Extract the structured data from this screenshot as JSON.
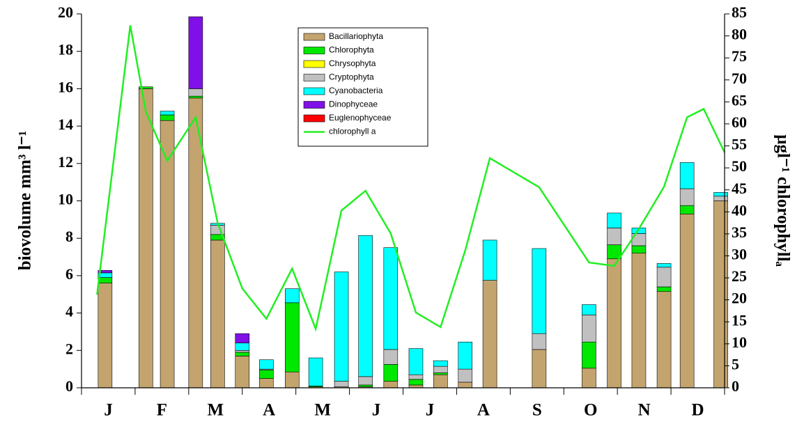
{
  "chart_data": {
    "type": "stacked-bar-line",
    "ylabel": "biovolume mm³ l⁻¹",
    "y2label": "µgl⁻¹ chlorophyllₐ",
    "xlim": [
      0,
      12
    ],
    "xtick_marks": [
      0,
      1,
      2,
      3,
      4,
      5,
      6,
      7,
      8,
      9,
      10,
      11,
      12
    ],
    "xticks": [
      {
        "value": 0.5,
        "label": "J"
      },
      {
        "value": 1.5,
        "label": "F"
      },
      {
        "value": 2.5,
        "label": "M"
      },
      {
        "value": 3.5,
        "label": "A"
      },
      {
        "value": 4.5,
        "label": "M"
      },
      {
        "value": 5.5,
        "label": "J"
      },
      {
        "value": 6.5,
        "label": "J"
      },
      {
        "value": 7.5,
        "label": "A"
      },
      {
        "value": 8.5,
        "label": "S"
      },
      {
        "value": 9.5,
        "label": "O"
      },
      {
        "value": 10.5,
        "label": "N"
      },
      {
        "value": 11.5,
        "label": "D"
      }
    ],
    "ylim": [
      0,
      20
    ],
    "yticks": [
      0,
      2,
      4,
      6,
      8,
      10,
      12,
      14,
      16,
      18,
      20
    ],
    "y2lim": [
      0,
      85
    ],
    "y2ticks": [
      0,
      5,
      10,
      15,
      20,
      25,
      30,
      35,
      40,
      45,
      50,
      55,
      60,
      65,
      70,
      75,
      80,
      85
    ],
    "x": [
      0.44,
      1.2,
      1.6,
      2.13,
      2.54,
      3.0,
      3.45,
      3.93,
      4.37,
      4.85,
      5.3,
      5.77,
      6.24,
      6.7,
      7.16,
      7.62,
      8.54,
      9.47,
      9.94,
      10.4,
      10.87,
      11.3,
      11.93
    ],
    "series": [
      {
        "name": "Bacillariophyta",
        "color": "#c4a46e",
        "values": [
          5.6,
          16.0,
          14.3,
          15.5,
          7.9,
          1.7,
          0.5,
          0.85,
          0.05,
          0.05,
          0.05,
          0.35,
          0.15,
          0.7,
          0.3,
          5.75,
          2.05,
          1.05,
          6.9,
          7.2,
          5.15,
          9.3,
          10.0
        ]
      },
      {
        "name": "Chlorophyta",
        "color": "#00e800",
        "values": [
          0.3,
          0.1,
          0.3,
          0.1,
          0.3,
          0.2,
          0.45,
          3.7,
          0.05,
          0,
          0.1,
          0.9,
          0.3,
          0.1,
          0,
          0,
          0,
          1.4,
          0.75,
          0.4,
          0.25,
          0.45,
          0
        ]
      },
      {
        "name": "Chrysophyta",
        "color": "#ffff00",
        "values": [
          0,
          0,
          0,
          0,
          0,
          0,
          0,
          0,
          0,
          0,
          0,
          0,
          0,
          0,
          0,
          0,
          0,
          0,
          0,
          0,
          0,
          0,
          0
        ]
      },
      {
        "name": "Cryptophyta",
        "color": "#c0c0c0",
        "values": [
          0,
          0,
          0,
          0.4,
          0.5,
          0.1,
          0.05,
          0,
          0,
          0.3,
          0.45,
          0.8,
          0.25,
          0.35,
          0.7,
          0,
          0.85,
          1.45,
          0.9,
          0.65,
          1.05,
          0.9,
          0.25
        ]
      },
      {
        "name": "Cyanobacteria",
        "color": "#00ffff",
        "values": [
          0.25,
          0,
          0.2,
          0,
          0.1,
          0.4,
          0.5,
          0.75,
          1.5,
          5.85,
          7.55,
          5.45,
          1.4,
          0.3,
          1.45,
          2.15,
          4.55,
          0.55,
          0.8,
          0.3,
          0.2,
          1.4,
          0.2
        ]
      },
      {
        "name": "Dinophyceae",
        "color": "#8010e8",
        "values": [
          0.13,
          0,
          0,
          3.85,
          0,
          0.5,
          0,
          0,
          0,
          0,
          0,
          0,
          0,
          0,
          0,
          0,
          0,
          0,
          0,
          0,
          0,
          0,
          0
        ]
      },
      {
        "name": "Euglenophyceae",
        "color": "#ff0000",
        "values": [
          0,
          0,
          0,
          0,
          0,
          0,
          0,
          0,
          0,
          0,
          0,
          0,
          0,
          0,
          0,
          0,
          0,
          0,
          0,
          0,
          0,
          0,
          0
        ]
      },
      {
        "name": "chlorophyll a",
        "color": "#22ee22",
        "type": "line",
        "axis": "y2",
        "x": [
          0.29,
          0.91,
          1.2,
          1.6,
          2.13,
          2.54,
          3.0,
          3.45,
          3.93,
          4.37,
          4.85,
          5.3,
          5.77,
          6.24,
          6.7,
          7.16,
          7.62,
          8.54,
          9.47,
          9.94,
          10.4,
          10.87,
          11.3,
          11.61,
          12
        ],
        "values": [
          21.2,
          82.4,
          62.8,
          51.6,
          61.5,
          37.5,
          22.6,
          15.7,
          27.1,
          13.4,
          40.3,
          44.8,
          35.1,
          17.1,
          13.8,
          31.2,
          52.2,
          45.6,
          28.5,
          27.7,
          36.1,
          45.7,
          61.5,
          63.4,
          53.5
        ]
      }
    ]
  }
}
